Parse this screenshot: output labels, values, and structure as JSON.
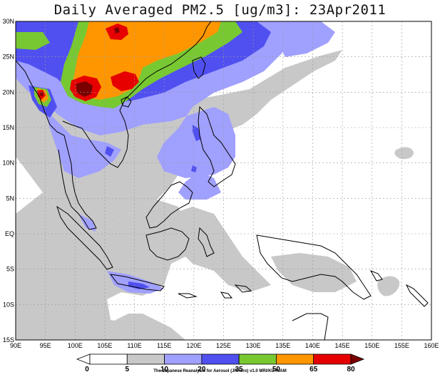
{
  "title": "Daily Averaged PM2.5 [ug/m3]: 23Apr2011",
  "credit": "The Japanese Reanalysis for Aerosol (JRAero) v1.0 MRI/KU RIAM",
  "axes": {
    "lon_ticks": [
      "90E",
      "95E",
      "100E",
      "105E",
      "110E",
      "115E",
      "120E",
      "125E",
      "130E",
      "135E",
      "140E",
      "145E",
      "150E",
      "155E",
      "160E"
    ],
    "lat_ticks": [
      "30N",
      "25N",
      "20N",
      "15N",
      "10N",
      "5N",
      "EQ",
      "5S",
      "10S",
      "15S"
    ]
  },
  "map_extent": {
    "lon": [
      90,
      160
    ],
    "lat": [
      -15,
      30
    ]
  },
  "colorbar": {
    "levels": [
      "0",
      "5",
      "10",
      "20",
      "35",
      "50",
      "65",
      "80"
    ],
    "colors": [
      "#ffffff",
      "#ffffff",
      "#c8c8c8",
      "#a0a0ff",
      "#5050f0",
      "#78c832",
      "#ff9600",
      "#e60000",
      "#7a0000"
    ]
  },
  "chart_data": {
    "type": "heatmap",
    "title": "Daily Averaged PM2.5 [ug/m3]: 23Apr2011",
    "xlabel": "",
    "ylabel": "",
    "x_range": [
      90,
      160
    ],
    "y_range": [
      -15,
      30
    ],
    "color_levels": [
      0,
      5,
      10,
      20,
      35,
      50,
      65,
      80
    ],
    "hotspots": [
      {
        "lon": 97.5,
        "lat": 19.5,
        "value": 80
      },
      {
        "lon": 94.5,
        "lat": 19.5,
        "value": 80
      },
      {
        "lon": 109.5,
        "lat": 28.8,
        "value": 80
      },
      {
        "lon": 108.0,
        "lat": 21.5,
        "value": 65
      }
    ]
  }
}
